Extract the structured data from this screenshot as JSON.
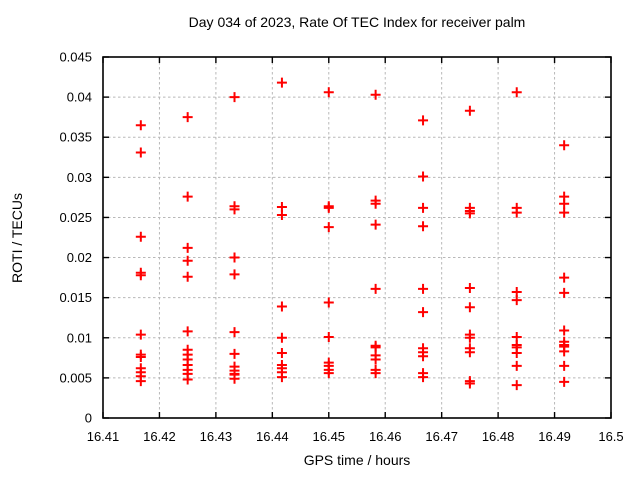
{
  "chart_data": {
    "type": "scatter",
    "title": "Day 034 of 2023, Rate Of TEC Index for receiver palm",
    "xlabel": "GPS time / hours",
    "ylabel": "ROTI / TECUs",
    "xlim": [
      16.41,
      16.5
    ],
    "ylim": [
      0,
      0.045
    ],
    "xticks": {
      "values": [
        16.41,
        16.42,
        16.43,
        16.44,
        16.45,
        16.46,
        16.47,
        16.48,
        16.49,
        16.5
      ],
      "labels": [
        "16.41",
        "16.42",
        "16.43",
        "16.44",
        "16.45",
        "16.46",
        "16.47",
        "16.48",
        "16.49",
        "16.5"
      ]
    },
    "yticks": {
      "values": [
        0,
        0.005,
        0.01,
        0.015,
        0.02,
        0.025,
        0.03,
        0.035,
        0.04,
        0.045
      ],
      "labels": [
        "0",
        "0.005",
        "0.01",
        "0.015",
        "0.02",
        "0.025",
        "0.03",
        "0.035",
        "0.04",
        "0.045"
      ]
    },
    "grid": true,
    "legend_position": "none",
    "marker": "plus",
    "marker_color": "#ff0000",
    "grid_color": "#b8b8b8",
    "border_color": "#000000",
    "series": [
      {
        "name": "ROTI",
        "points": [
          [
            16.4167,
            0.0365
          ],
          [
            16.4167,
            0.0331
          ],
          [
            16.4167,
            0.0226
          ],
          [
            16.4167,
            0.0181
          ],
          [
            16.4167,
            0.0178
          ],
          [
            16.4167,
            0.0104
          ],
          [
            16.4167,
            0.0079
          ],
          [
            16.4167,
            0.0076
          ],
          [
            16.4167,
            0.0062
          ],
          [
            16.4167,
            0.0057
          ],
          [
            16.4167,
            0.0052
          ],
          [
            16.4167,
            0.0046
          ],
          [
            16.425,
            0.0375
          ],
          [
            16.425,
            0.0276
          ],
          [
            16.425,
            0.0212
          ],
          [
            16.425,
            0.0196
          ],
          [
            16.425,
            0.0176
          ],
          [
            16.425,
            0.0108
          ],
          [
            16.425,
            0.0085
          ],
          [
            16.425,
            0.0079
          ],
          [
            16.425,
            0.0073
          ],
          [
            16.425,
            0.0066
          ],
          [
            16.425,
            0.006
          ],
          [
            16.425,
            0.0055
          ],
          [
            16.425,
            0.0048
          ],
          [
            16.4333,
            0.04
          ],
          [
            16.4333,
            0.0264
          ],
          [
            16.4333,
            0.026
          ],
          [
            16.4333,
            0.02
          ],
          [
            16.4333,
            0.0179
          ],
          [
            16.4333,
            0.0107
          ],
          [
            16.4333,
            0.008
          ],
          [
            16.4333,
            0.0064
          ],
          [
            16.4333,
            0.0059
          ],
          [
            16.4333,
            0.0055
          ],
          [
            16.4333,
            0.0054
          ],
          [
            16.4333,
            0.0049
          ],
          [
            16.4417,
            0.0418
          ],
          [
            16.4417,
            0.0263
          ],
          [
            16.4417,
            0.0253
          ],
          [
            16.4417,
            0.0139
          ],
          [
            16.4417,
            0.01
          ],
          [
            16.4417,
            0.0081
          ],
          [
            16.4417,
            0.0066
          ],
          [
            16.4417,
            0.0062
          ],
          [
            16.4417,
            0.0057
          ],
          [
            16.4417,
            0.0051
          ],
          [
            16.45,
            0.0406
          ],
          [
            16.45,
            0.0264
          ],
          [
            16.45,
            0.0262
          ],
          [
            16.45,
            0.0238
          ],
          [
            16.45,
            0.0144
          ],
          [
            16.45,
            0.0101
          ],
          [
            16.45,
            0.0069
          ],
          [
            16.45,
            0.0065
          ],
          [
            16.45,
            0.006
          ],
          [
            16.45,
            0.0056
          ],
          [
            16.4583,
            0.0403
          ],
          [
            16.4583,
            0.0271
          ],
          [
            16.4583,
            0.0267
          ],
          [
            16.4583,
            0.0241
          ],
          [
            16.4583,
            0.0161
          ],
          [
            16.4583,
            0.009
          ],
          [
            16.4583,
            0.0088
          ],
          [
            16.4583,
            0.0078
          ],
          [
            16.4583,
            0.0073
          ],
          [
            16.4583,
            0.006
          ],
          [
            16.4583,
            0.0056
          ],
          [
            16.4667,
            0.0371
          ],
          [
            16.4667,
            0.0301
          ],
          [
            16.4667,
            0.0262
          ],
          [
            16.4667,
            0.0239
          ],
          [
            16.4667,
            0.0161
          ],
          [
            16.4667,
            0.0132
          ],
          [
            16.4667,
            0.0087
          ],
          [
            16.4667,
            0.0082
          ],
          [
            16.4667,
            0.0077
          ],
          [
            16.4667,
            0.0056
          ],
          [
            16.4667,
            0.0051
          ],
          [
            16.475,
            0.0383
          ],
          [
            16.475,
            0.0262
          ],
          [
            16.475,
            0.0258
          ],
          [
            16.475,
            0.0255
          ],
          [
            16.475,
            0.0162
          ],
          [
            16.475,
            0.0138
          ],
          [
            16.475,
            0.0104
          ],
          [
            16.475,
            0.01
          ],
          [
            16.475,
            0.0087
          ],
          [
            16.475,
            0.0082
          ],
          [
            16.475,
            0.0046
          ],
          [
            16.475,
            0.0043
          ],
          [
            16.4833,
            0.0406
          ],
          [
            16.4833,
            0.0262
          ],
          [
            16.4833,
            0.0256
          ],
          [
            16.4833,
            0.0157
          ],
          [
            16.4833,
            0.0147
          ],
          [
            16.4833,
            0.0101
          ],
          [
            16.4833,
            0.0091
          ],
          [
            16.4833,
            0.0088
          ],
          [
            16.4833,
            0.0081
          ],
          [
            16.4833,
            0.0065
          ],
          [
            16.4833,
            0.0041
          ],
          [
            16.4917,
            0.034
          ],
          [
            16.4917,
            0.0276
          ],
          [
            16.4917,
            0.0267
          ],
          [
            16.4917,
            0.0256
          ],
          [
            16.4917,
            0.0175
          ],
          [
            16.4917,
            0.0156
          ],
          [
            16.4917,
            0.0109
          ],
          [
            16.4917,
            0.0095
          ],
          [
            16.4917,
            0.0091
          ],
          [
            16.4917,
            0.0089
          ],
          [
            16.4917,
            0.0083
          ],
          [
            16.4917,
            0.0065
          ],
          [
            16.4917,
            0.0045
          ]
        ]
      }
    ]
  }
}
